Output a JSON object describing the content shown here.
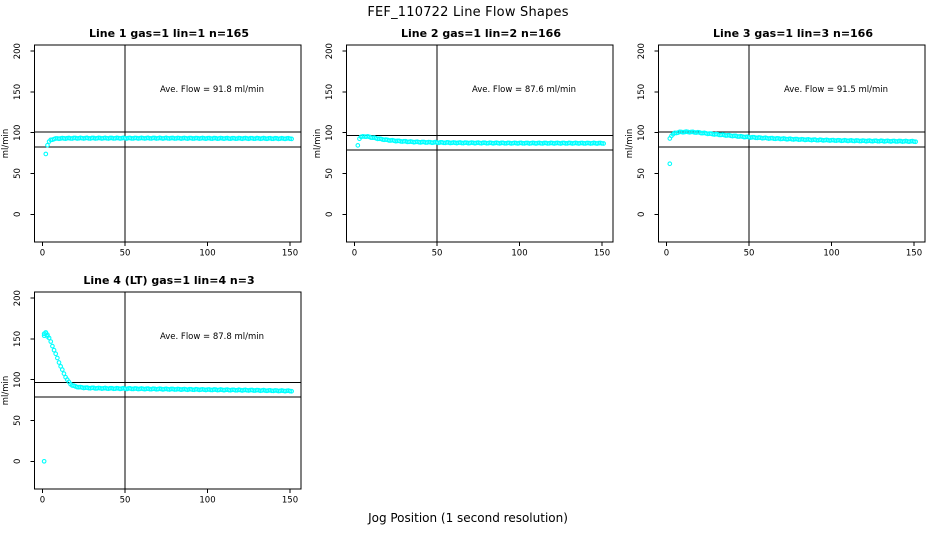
{
  "figure": {
    "title": "FEF_110722  Line Flow Shapes",
    "xlabel": "Jog Position (1 second resolution)",
    "ylabel": "ml/min",
    "point_color": "#00FFFF",
    "axis_color": "#000000",
    "background_color": "#FFFFFF"
  },
  "chart_data": [
    {
      "type": "scatter",
      "title": "Line 1 gas=1 lin=1 n=165",
      "gas": 1,
      "lin": 1,
      "n": 165,
      "ave_flow_ml_min": 91.8,
      "annotation": "Ave. Flow =  91.8  ml/min",
      "marker": "open-circle",
      "xticks": [
        0,
        50,
        100,
        150
      ],
      "yticks": [
        0,
        50,
        100,
        150,
        200
      ],
      "xlim": [
        -5,
        155
      ],
      "ylim": [
        -34,
        208
      ],
      "vline_x": 50,
      "hlines": [
        101.0,
        82.6
      ],
      "keypoints": [
        [
          3,
          85
        ],
        [
          4,
          89
        ],
        [
          5,
          91
        ],
        [
          7,
          92.5
        ],
        [
          10,
          93
        ],
        [
          20,
          93.3
        ],
        [
          40,
          93.3
        ],
        [
          70,
          93.3
        ],
        [
          100,
          93.1
        ],
        [
          130,
          93
        ],
        [
          151,
          92.8
        ]
      ],
      "extra_points": [
        [
          2,
          74
        ]
      ]
    },
    {
      "type": "scatter",
      "title": "Line 2 gas=1 lin=2 n=166",
      "gas": 1,
      "lin": 2,
      "n": 166,
      "ave_flow_ml_min": 87.6,
      "annotation": "Ave. Flow =  87.6  ml/min",
      "marker": "open-circle",
      "xticks": [
        0,
        50,
        100,
        150
      ],
      "yticks": [
        0,
        50,
        100,
        150,
        200
      ],
      "xlim": [
        -5,
        155
      ],
      "ylim": [
        -34,
        208
      ],
      "vline_x": 50,
      "hlines": [
        96.4,
        78.8
      ],
      "keypoints": [
        [
          3,
          93
        ],
        [
          4,
          94.8
        ],
        [
          6,
          95.6
        ],
        [
          8,
          95.2
        ],
        [
          11,
          94
        ],
        [
          15,
          92.5
        ],
        [
          20,
          91
        ],
        [
          27,
          89.7
        ],
        [
          35,
          88.8
        ],
        [
          45,
          88.2
        ],
        [
          60,
          87.7
        ],
        [
          80,
          87.4
        ],
        [
          105,
          87.2
        ],
        [
          130,
          87.2
        ],
        [
          151,
          87.1
        ]
      ],
      "extra_points": [
        [
          2,
          84.5
        ]
      ]
    },
    {
      "type": "scatter",
      "title": "Line 3 gas=1 lin=3 n=166",
      "gas": 1,
      "lin": 3,
      "n": 166,
      "ave_flow_ml_min": 91.5,
      "annotation": "Ave. Flow =  91.5  ml/min",
      "marker": "open-circle",
      "xticks": [
        0,
        50,
        100,
        150
      ],
      "yticks": [
        0,
        50,
        100,
        150,
        200
      ],
      "xlim": [
        -5,
        155
      ],
      "ylim": [
        -34,
        208
      ],
      "vline_x": 50,
      "hlines": [
        100.7,
        82.4
      ],
      "keypoints": [
        [
          2,
          93
        ],
        [
          3,
          96.5
        ],
        [
          5,
          99.5
        ],
        [
          8,
          100.8
        ],
        [
          13,
          101
        ],
        [
          18,
          100.5
        ],
        [
          24,
          99.2
        ],
        [
          31,
          97.8
        ],
        [
          40,
          96.2
        ],
        [
          50,
          94.5
        ],
        [
          62,
          93.2
        ],
        [
          75,
          92.2
        ],
        [
          90,
          91.2
        ],
        [
          105,
          90.5
        ],
        [
          120,
          90
        ],
        [
          135,
          89.7
        ],
        [
          151,
          89.3
        ]
      ],
      "extra_points": [
        [
          2,
          62
        ]
      ]
    },
    {
      "type": "scatter",
      "title": "Line 4 (LT) gas=1 lin=4 n=3",
      "gas": 1,
      "lin": 4,
      "n": 3,
      "ave_flow_ml_min": 87.8,
      "annotation": "Ave. Flow =  87.8  ml/min",
      "marker": "open-circle",
      "xticks": [
        0,
        50,
        100,
        150
      ],
      "yticks": [
        0,
        50,
        100,
        150,
        200
      ],
      "xlim": [
        -5,
        155
      ],
      "ylim": [
        -34,
        208
      ],
      "vline_x": 50,
      "hlines": [
        96.6,
        79.0
      ],
      "keypoints": [
        [
          1,
          156
        ],
        [
          2,
          157.5
        ],
        [
          3,
          155.5
        ],
        [
          4,
          151
        ],
        [
          5,
          146.5
        ],
        [
          6,
          141.5
        ],
        [
          7,
          136.5
        ],
        [
          8,
          131.5
        ],
        [
          9,
          126.5
        ],
        [
          10,
          121.5
        ],
        [
          11,
          116.5
        ],
        [
          12,
          112
        ],
        [
          13,
          107.5
        ],
        [
          14,
          103.5
        ],
        [
          15,
          100
        ],
        [
          16,
          97
        ],
        [
          17,
          94.8
        ],
        [
          18,
          93.2
        ],
        [
          20,
          91.6
        ],
        [
          23,
          90.6
        ],
        [
          27,
          90
        ],
        [
          33,
          89.6
        ],
        [
          42,
          89.3
        ],
        [
          55,
          89
        ],
        [
          70,
          88.6
        ],
        [
          85,
          88.2
        ],
        [
          100,
          87.8
        ],
        [
          115,
          87.4
        ],
        [
          130,
          87
        ],
        [
          151,
          86.2
        ]
      ],
      "extra_points": [
        [
          1,
          0
        ],
        [
          1,
          154
        ],
        [
          2,
          158
        ],
        [
          3,
          153
        ]
      ]
    }
  ]
}
